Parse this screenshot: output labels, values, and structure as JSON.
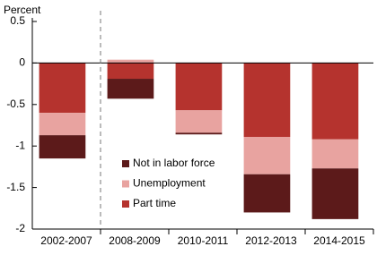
{
  "chart_data": {
    "type": "bar",
    "stacked": true,
    "y_label": "Percent",
    "categories": [
      "2002-2007",
      "2008-2009",
      "2010-2011",
      "2012-2013",
      "2014-2015"
    ],
    "series": [
      {
        "name": "Part time",
        "color": "#b5332e",
        "values": [
          -0.6,
          -0.19,
          -0.57,
          -0.89,
          -0.92
        ]
      },
      {
        "name": "Unemployment",
        "color": "#e8a3a0",
        "values": [
          -0.27,
          0.04,
          -0.27,
          -0.45,
          -0.35
        ]
      },
      {
        "name": "Not in labor force",
        "color": "#5c1a1a",
        "values": [
          -0.28,
          -0.24,
          -0.02,
          -0.46,
          -0.61
        ]
      }
    ],
    "ylim": [
      -2,
      0.5
    ],
    "yticks": [
      0.5,
      0,
      -0.5,
      -1,
      -1.5,
      -2
    ]
  }
}
